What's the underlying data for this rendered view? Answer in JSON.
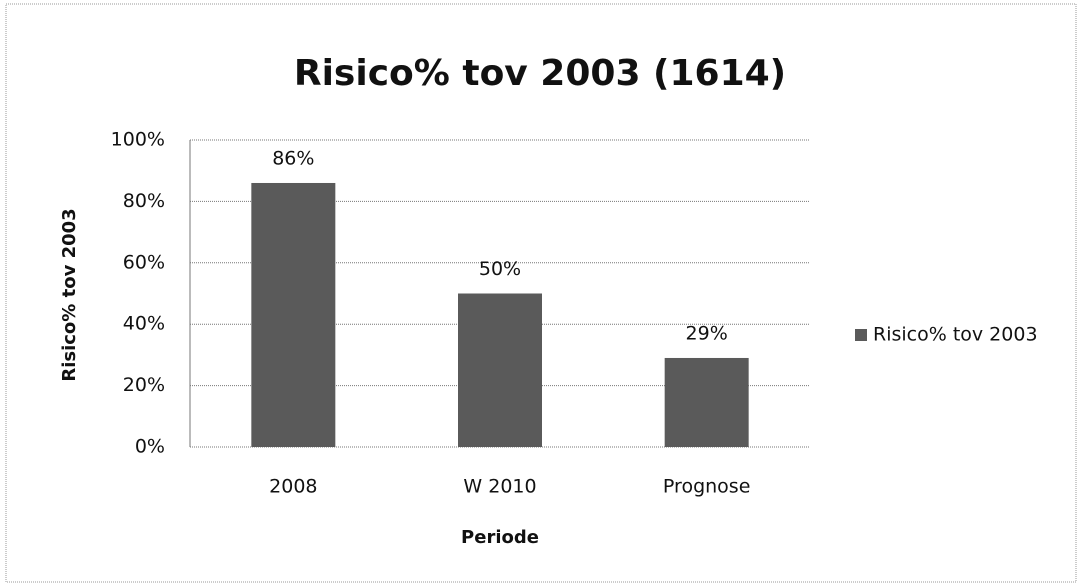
{
  "chart_data": {
    "type": "bar",
    "title": "Risico% tov 2003 (1614)",
    "categories": [
      "2008",
      "W 2010",
      "Prognose"
    ],
    "series": [
      {
        "name": "Risico% tov 2003",
        "color": "#5a5a5a",
        "values": [
          86,
          50,
          29
        ],
        "value_labels": [
          "86%",
          "50%",
          "29%"
        ]
      }
    ],
    "xlabel": "Periode",
    "ylabel": "Risico% tov 2003",
    "ylim": [
      0,
      100
    ],
    "yticks": [
      {
        "value": 0,
        "label": "0%"
      },
      {
        "value": 20,
        "label": "20%"
      },
      {
        "value": 40,
        "label": "40%"
      },
      {
        "value": 60,
        "label": "60%"
      },
      {
        "value": 80,
        "label": "80%"
      },
      {
        "value": 100,
        "label": "100%"
      }
    ],
    "grid": true,
    "legend": "right"
  }
}
